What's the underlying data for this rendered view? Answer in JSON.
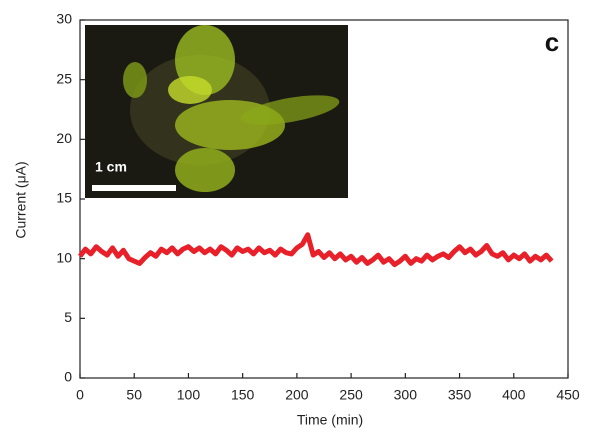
{
  "chart_data": {
    "type": "line",
    "panel_label": "c",
    "inset_scale_label": "1 cm",
    "x_label": "Time (min)",
    "y_label": "Current (μA)",
    "xlim": [
      0,
      450
    ],
    "xticks": [
      0,
      50,
      100,
      150,
      200,
      250,
      300,
      350,
      400,
      450
    ],
    "ylim": [
      0,
      30
    ],
    "yticks": [
      0,
      5,
      10,
      15,
      20,
      25,
      30
    ],
    "x": [
      0,
      5,
      10,
      15,
      20,
      25,
      30,
      35,
      40,
      45,
      50,
      55,
      60,
      65,
      70,
      75,
      80,
      85,
      90,
      95,
      100,
      105,
      110,
      115,
      120,
      125,
      130,
      135,
      140,
      145,
      150,
      155,
      160,
      165,
      170,
      175,
      180,
      185,
      190,
      195,
      200,
      205,
      210,
      215,
      220,
      225,
      230,
      235,
      240,
      245,
      250,
      255,
      260,
      265,
      270,
      275,
      280,
      285,
      290,
      295,
      300,
      305,
      310,
      315,
      320,
      325,
      330,
      335,
      340,
      345,
      350,
      355,
      360,
      365,
      370,
      375,
      380,
      385,
      390,
      395,
      400,
      405,
      410,
      415,
      420,
      425,
      430,
      435
    ],
    "series": [
      {
        "color": "#e8202a",
        "values": [
          10.2,
          10.8,
          10.4,
          11.0,
          10.6,
          10.3,
          10.9,
          10.2,
          10.7,
          10.0,
          9.8,
          9.6,
          10.1,
          10.5,
          10.2,
          10.8,
          10.5,
          10.9,
          10.4,
          10.8,
          11.0,
          10.6,
          10.9,
          10.5,
          10.8,
          10.4,
          11.0,
          10.7,
          10.3,
          10.9,
          10.6,
          10.8,
          10.4,
          10.9,
          10.5,
          10.7,
          10.3,
          10.8,
          10.5,
          10.4,
          10.9,
          11.2,
          12.0,
          10.3,
          10.6,
          10.1,
          10.5,
          10.0,
          10.4,
          9.9,
          10.2,
          9.7,
          10.1,
          9.6,
          9.9,
          10.3,
          9.7,
          10.0,
          9.5,
          9.8,
          10.2,
          9.6,
          10.0,
          9.8,
          10.3,
          9.9,
          10.2,
          10.4,
          10.1,
          10.6,
          11.0,
          10.5,
          10.8,
          10.3,
          10.6,
          11.1,
          10.4,
          10.2,
          10.5,
          9.9,
          10.3,
          10.0,
          10.4,
          9.8,
          10.2,
          9.9,
          10.3,
          9.8
        ]
      }
    ]
  }
}
